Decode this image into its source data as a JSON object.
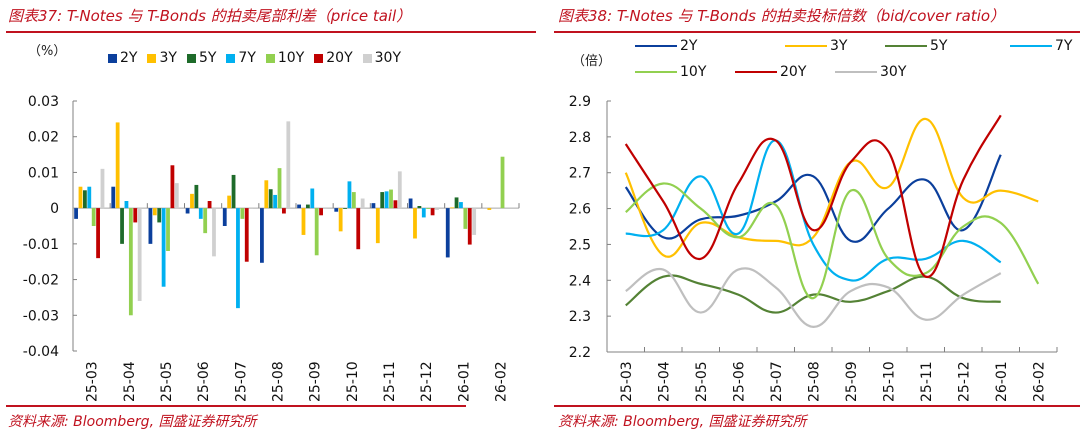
{
  "left": {
    "title": "图表37: T-Notes 与 T-Bonds 的拍卖尾部利差（price tail）",
    "unit": "（%）",
    "source": "资料来源: Bloomberg, 国盛证券研究所"
  },
  "right": {
    "title": "图表38: T-Notes 与 T-Bonds 的拍卖投标倍数（bid/cover ratio）",
    "unit": "（倍）",
    "source": "资料来源: Bloomberg, 国盛证券研究所"
  },
  "chart_data": [
    {
      "type": "bar",
      "title": "T-Notes 与 T-Bonds 的拍卖尾部利差（price tail）",
      "ylabel": "（%）",
      "xlabel": "",
      "ylim": [
        -0.04,
        0.03
      ],
      "yticks": [
        "0.03",
        "0.02",
        "0.01",
        "0",
        "-0.01",
        "-0.02",
        "-0.03",
        "-0.04"
      ],
      "ytick_values": [
        0.03,
        0.02,
        0.01,
        0,
        -0.01,
        -0.02,
        -0.03,
        -0.04
      ],
      "legend_position": "top",
      "grid": false,
      "categories": [
        "25-03",
        "25-04",
        "25-05",
        "25-06",
        "25-07",
        "25-08",
        "25-09",
        "25-10",
        "25-11",
        "25-12",
        "26-01",
        "26-02"
      ],
      "series": [
        {
          "name": "2Y",
          "color": "#0b3f9c",
          "values": [
            -0.003,
            0.006,
            -0.01,
            -0.0015,
            -0.005,
            -0.0153,
            0.001,
            -0.001,
            0.0014,
            0.0027,
            -0.0138,
            null
          ]
        },
        {
          "name": "3Y",
          "color": "#ffc000",
          "values": [
            0.006,
            0.024,
            -0.002,
            0.004,
            0.0035,
            0.0078,
            -0.0075,
            -0.0065,
            -0.0098,
            -0.0085,
            0.0002,
            -0.0005
          ]
        },
        {
          "name": "5Y",
          "color": "#1e6b2a",
          "values": [
            0.005,
            -0.01,
            -0.004,
            0.0065,
            0.0093,
            0.0053,
            0.001,
            0.0,
            0.0045,
            0.0006,
            0.003,
            null
          ]
        },
        {
          "name": "7Y",
          "color": "#00b0f0",
          "values": [
            0.006,
            0.002,
            -0.022,
            -0.003,
            -0.028,
            0.0037,
            0.0055,
            0.0075,
            0.0047,
            -0.0026,
            0.0017,
            null
          ]
        },
        {
          "name": "10Y",
          "color": "#92d050",
          "values": [
            -0.005,
            -0.03,
            -0.012,
            -0.007,
            -0.003,
            0.0112,
            -0.0132,
            0.0045,
            0.0052,
            0.0,
            -0.0058,
            0.0144
          ]
        },
        {
          "name": "20Y",
          "color": "#c00000",
          "values": [
            -0.014,
            -0.004,
            0.012,
            0.002,
            -0.015,
            -0.0015,
            -0.002,
            -0.0115,
            0.0022,
            -0.002,
            -0.0102,
            null
          ]
        },
        {
          "name": "30Y",
          "color": "#d0d0d0",
          "values": [
            0.011,
            -0.026,
            0.007,
            -0.0135,
            0.0,
            0.0243,
            0.0,
            0.0027,
            0.0103,
            -0.0005,
            -0.0075,
            null
          ]
        }
      ]
    },
    {
      "type": "line",
      "title": "T-Notes 与 T-Bonds 的拍卖投标倍数（bid/cover ratio）",
      "ylabel": "（倍）",
      "xlabel": "",
      "ylim": [
        2.2,
        2.9
      ],
      "yticks": [
        "2.9",
        "2.8",
        "2.7",
        "2.6",
        "2.5",
        "2.4",
        "2.3",
        "2.2"
      ],
      "ytick_values": [
        2.9,
        2.8,
        2.7,
        2.6,
        2.5,
        2.4,
        2.3,
        2.2
      ],
      "legend_position": "top",
      "grid": false,
      "categories": [
        "25-03",
        "25-04",
        "25-05",
        "25-06",
        "25-07",
        "25-08",
        "25-09",
        "25-10",
        "25-11",
        "25-12",
        "26-01",
        "26-02"
      ],
      "series": [
        {
          "name": "2Y",
          "color": "#0b3f9c",
          "values": [
            2.66,
            2.52,
            2.57,
            2.58,
            2.62,
            2.69,
            2.51,
            2.6,
            2.68,
            2.54,
            2.75,
            null
          ]
        },
        {
          "name": "3Y",
          "color": "#ffc000",
          "values": [
            2.7,
            2.47,
            2.56,
            2.52,
            2.51,
            2.52,
            2.73,
            2.66,
            2.85,
            2.63,
            2.65,
            2.62
          ]
        },
        {
          "name": "5Y",
          "color": "#548235",
          "values": [
            2.33,
            2.41,
            2.39,
            2.36,
            2.31,
            2.36,
            2.34,
            2.37,
            2.41,
            2.35,
            2.34,
            null
          ]
        },
        {
          "name": "7Y",
          "color": "#00b0f0",
          "values": [
            2.53,
            2.54,
            2.69,
            2.53,
            2.79,
            2.5,
            2.4,
            2.46,
            2.46,
            2.51,
            2.45,
            null
          ]
        },
        {
          "name": "10Y",
          "color": "#92d050",
          "values": [
            2.59,
            2.67,
            2.6,
            2.52,
            2.61,
            2.35,
            2.65,
            2.46,
            2.42,
            2.55,
            2.56,
            2.39
          ]
        },
        {
          "name": "20Y",
          "color": "#c00000",
          "values": [
            2.78,
            2.62,
            2.46,
            2.67,
            2.79,
            2.54,
            2.73,
            2.76,
            2.41,
            2.68,
            2.86,
            null
          ]
        },
        {
          "name": "30Y",
          "color": "#bfbfbf",
          "values": [
            2.37,
            2.43,
            2.31,
            2.43,
            2.38,
            2.27,
            2.37,
            2.38,
            2.29,
            2.36,
            2.42,
            null
          ]
        }
      ]
    }
  ]
}
